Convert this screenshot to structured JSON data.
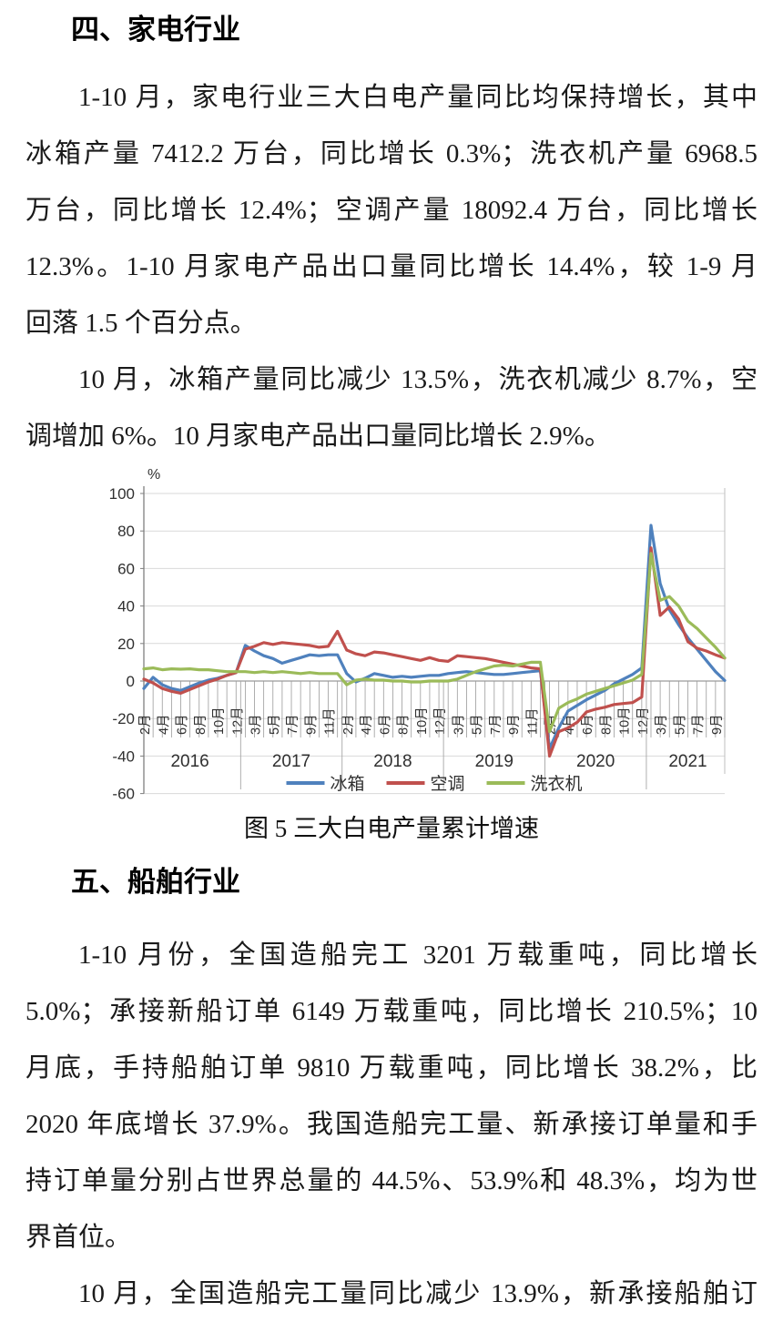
{
  "section_appliance": {
    "heading": "四、家电行业",
    "para1_lines": [
      "1-10 月，家电行业三大白电产量同比均保持增长，其中",
      "冰箱产量 7412.2 万台，同比增长 0.3%；洗衣机产量 6968.5",
      "万台，同比增长 12.4%；空调产量 18092.4 万台，同比增长",
      "12.3%。1-10 月家电产品出口量同比增长 14.4%，较 1-9 月"
    ],
    "para1_last": "回落 1.5 个百分点。",
    "para2_lines": [
      "10 月，冰箱产量同比减少 13.5%，洗衣机减少 8.7%，空"
    ],
    "para2_last": "调增加 6%。10 月家电产品出口量同比增长 2.9%。"
  },
  "figure": {
    "caption": "图 5 三大白电产量累计增速"
  },
  "chart_data": {
    "type": "line",
    "title": "图 5 三大白电产量累计增速",
    "unit_label": "%",
    "ylim": [
      -60,
      100
    ],
    "ytick_interval": 20,
    "grid": true,
    "legend_position": "bottom",
    "x_tick_labels": [
      "2月",
      "4月",
      "6月",
      "8月",
      "10月",
      "12月",
      "3月",
      "5月",
      "7月",
      "9月",
      "11月",
      "2月",
      "4月",
      "6月",
      "8月",
      "10月",
      "12月",
      "3月",
      "5月",
      "7月",
      "9月",
      "11月",
      "2月",
      "4月",
      "6月",
      "8月",
      "10月",
      "12月",
      "3月",
      "5月",
      "7月",
      "9月"
    ],
    "years": [
      {
        "label": "2016",
        "points": 11
      },
      {
        "label": "2017",
        "points": 11
      },
      {
        "label": "2018",
        "points": 11
      },
      {
        "label": "2019",
        "points": 11
      },
      {
        "label": "2020",
        "points": 11
      },
      {
        "label": "2021",
        "points": 9
      }
    ],
    "series": [
      {
        "name": "冰箱",
        "color": "#4F81BD",
        "values": [
          -4,
          2,
          -2,
          -4,
          -5,
          -3,
          -1,
          0.5,
          1.5,
          3,
          4.5,
          19,
          16,
          13.5,
          12,
          9.5,
          11,
          12.5,
          14,
          13.5,
          14,
          14,
          4,
          -0.5,
          1.5,
          4,
          3,
          2,
          2.5,
          2,
          2.5,
          3,
          3,
          4,
          4.5,
          5,
          4.5,
          4,
          3.5,
          3.5,
          4,
          4.5,
          5,
          5.5,
          -36,
          -25,
          -16,
          -13,
          -10,
          -7.5,
          -5,
          -1.5,
          1,
          3.5,
          7,
          83,
          52,
          38,
          30,
          23,
          17,
          11,
          5,
          0.3
        ]
      },
      {
        "name": "空调",
        "color": "#C0504D",
        "values": [
          1,
          -1,
          -4,
          -5.5,
          -6.5,
          -4.5,
          -2.5,
          -0.5,
          1,
          3,
          4.5,
          17,
          18.5,
          20.5,
          19.5,
          20.5,
          20,
          19.5,
          19,
          18,
          18.5,
          26.5,
          16.5,
          14.5,
          13.5,
          15.5,
          15,
          14,
          13,
          12,
          11,
          12.5,
          11,
          10.5,
          13.5,
          13,
          12.5,
          12,
          11,
          10,
          9,
          8,
          7,
          6.5,
          -40,
          -27,
          -25,
          -22,
          -16.5,
          -15,
          -14,
          -12.5,
          -12,
          -11.5,
          -8.5,
          71,
          35,
          39.5,
          33,
          21,
          17.5,
          16,
          14,
          12.3
        ]
      },
      {
        "name": "洗衣机",
        "color": "#9BBB59",
        "values": [
          6.5,
          7,
          6,
          6.5,
          6.3,
          6.5,
          6,
          6,
          5.5,
          5,
          5,
          5,
          4.5,
          5,
          4.5,
          5,
          4.5,
          4,
          4.5,
          4,
          4,
          4,
          -2,
          0.5,
          1,
          0.5,
          0.5,
          0,
          0,
          -0.5,
          -0.5,
          0,
          0,
          0,
          1,
          3,
          5,
          6.5,
          8,
          8.5,
          8,
          9,
          10,
          10,
          -27,
          -14.5,
          -11.5,
          -9.5,
          -7,
          -5.5,
          -4,
          -2.5,
          -1,
          0.5,
          3.5,
          68,
          43,
          45,
          40,
          32,
          28,
          23,
          18,
          12.4
        ]
      }
    ]
  },
  "section_ship": {
    "heading": "五、船舶行业",
    "para1_lines": [
      "1-10 月份，全国造船完工 3201 万载重吨，同比增长",
      "5.0%；承接新船订单 6149 万载重吨，同比增长 210.5%；10",
      "月底，手持船舶订单 9810 万载重吨，同比增长 38.2%，比",
      "2020 年底增长 37.9%。我国造船完工量、新承接订单量和手",
      "持订单量分别占世界总量的 44.5%、53.9%和 48.3%，均为世"
    ],
    "para1_last": "界首位。",
    "para2_lines": [
      "10 月，全国造船完工量同比减少 13.9%，新承接船舶订"
    ]
  }
}
